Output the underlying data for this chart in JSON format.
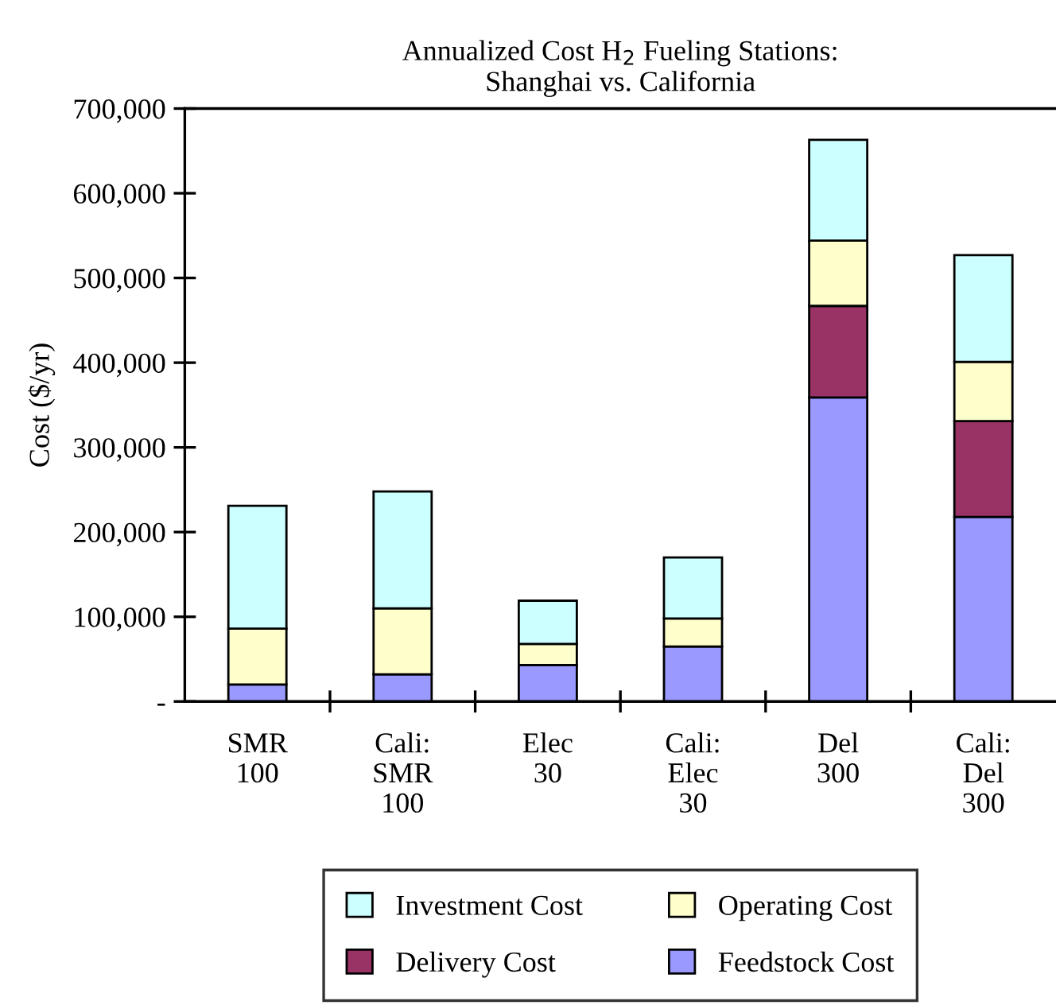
{
  "chart_data": {
    "type": "bar",
    "title": "Annualized Cost H$_{2}$ Fueling Stations:\nShanghai vs. California",
    "ylabel": "Cost ($/yr)",
    "categories": [
      "SMR\n100",
      "Cali:\nSMR\n100",
      "Elec\n30",
      "Cali:\nElec\n30",
      "Del\n300",
      "Cali:\nDel\n300"
    ],
    "stacked": true,
    "series": [
      {
        "name": "Feedstock Cost",
        "color": "#9999ff",
        "values": [
          20000,
          32000,
          43000,
          65000,
          359000,
          218000
        ]
      },
      {
        "name": "Delivery Cost",
        "color": "#993366",
        "values": [
          null,
          null,
          null,
          null,
          108000,
          113000
        ]
      },
      {
        "name": "Operating Cost",
        "color": "#ffffcc",
        "values": [
          66000,
          78000,
          25000,
          33000,
          77000,
          70000
        ]
      },
      {
        "name": "Investment Cost",
        "color": "#ccffff",
        "values": [
          145000,
          138000,
          51000,
          72000,
          119000,
          126000
        ]
      }
    ],
    "ylim": [
      0,
      700000
    ],
    "yticks": [
      {
        "value": 0,
        "label": "-"
      },
      {
        "value": 100000,
        "label": "100,000"
      },
      {
        "value": 200000,
        "label": "200,000"
      },
      {
        "value": 300000,
        "label": "300,000"
      },
      {
        "value": 400000,
        "label": "400,000"
      },
      {
        "value": 500000,
        "label": "500,000"
      },
      {
        "value": 600000,
        "label": "600,000"
      },
      {
        "value": 700000,
        "label": "700,000"
      }
    ],
    "grid": false,
    "legend": "bottom"
  }
}
